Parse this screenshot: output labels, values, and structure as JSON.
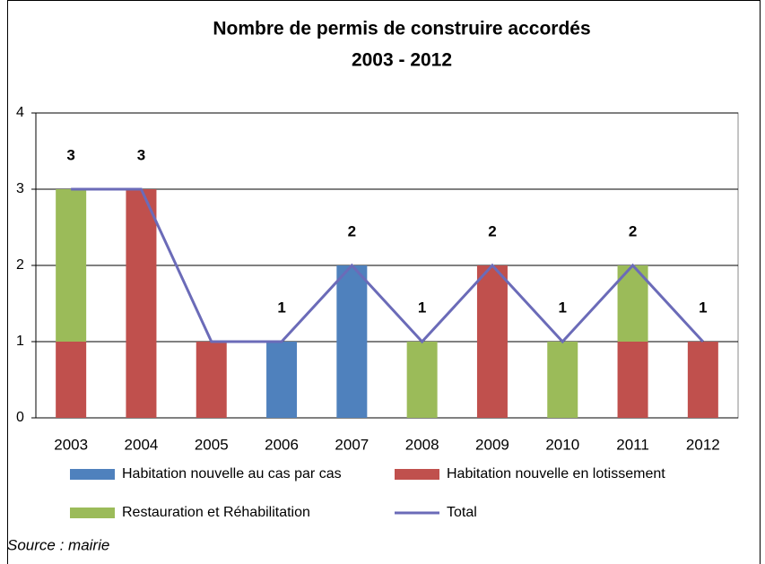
{
  "chart_data": {
    "type": "bar",
    "title": [
      "Nombre de permis de construire accordés",
      "2003 - 2012"
    ],
    "categories": [
      "2003",
      "2004",
      "2005",
      "2006",
      "2007",
      "2008",
      "2009",
      "2010",
      "2011",
      "2012"
    ],
    "series": [
      {
        "name": "Habitation nouvelle au cas par cas",
        "color": "#4f81bd",
        "values": [
          0,
          0,
          0,
          1,
          2,
          0,
          0,
          0,
          0,
          0
        ]
      },
      {
        "name": "Habitation nouvelle en lotissement",
        "color": "#c0504d",
        "values": [
          1,
          3,
          1,
          0,
          0,
          0,
          2,
          0,
          1,
          1
        ]
      },
      {
        "name": "Restauration et Réhabilitation",
        "color": "#9bbb59",
        "values": [
          2,
          0,
          0,
          0,
          0,
          1,
          0,
          1,
          1,
          0
        ]
      },
      {
        "name": "Total",
        "type": "line",
        "color": "#6b6bb8",
        "values": [
          3,
          3,
          1,
          1,
          2,
          1,
          2,
          1,
          2,
          1
        ],
        "value_labels": [
          "3",
          "3",
          null,
          "1",
          "2",
          "1",
          "2",
          "1",
          "2",
          "1"
        ]
      }
    ],
    "stacked": true,
    "ylim": [
      0,
      4
    ],
    "yticks": [
      0,
      1,
      2,
      3,
      4
    ],
    "grid": true,
    "note": "Source : mairie"
  }
}
